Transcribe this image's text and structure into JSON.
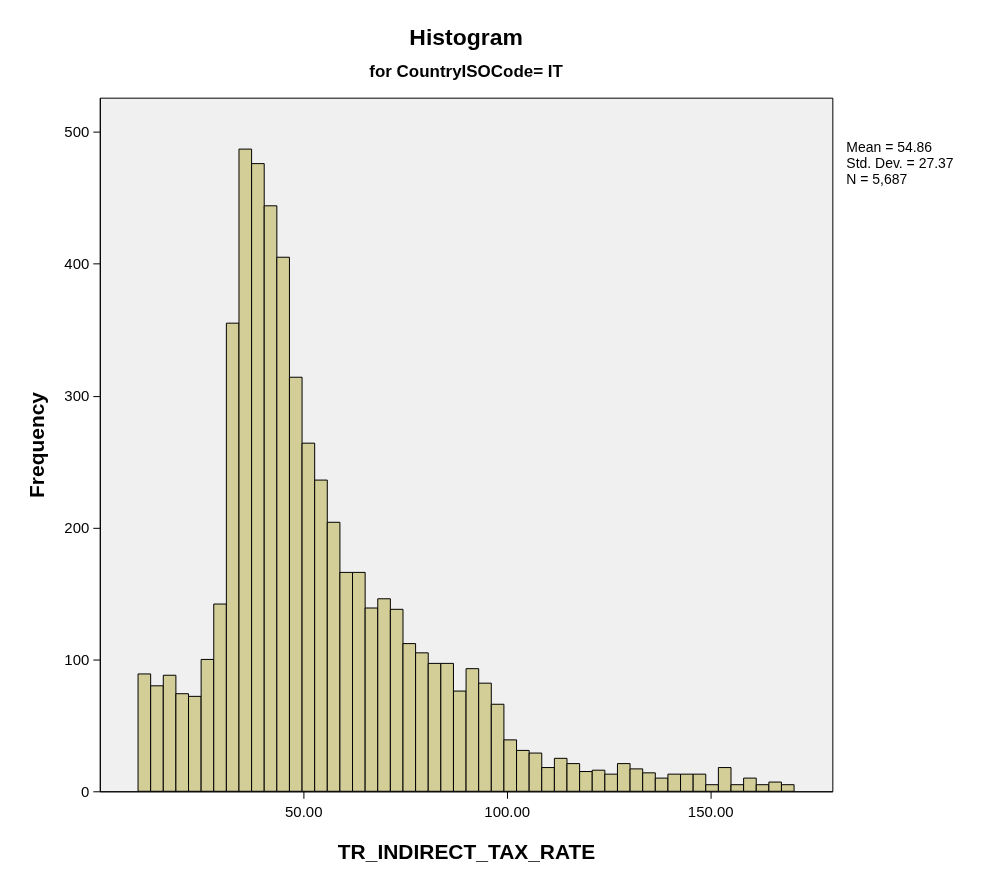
{
  "chart_data": {
    "type": "histogram",
    "title": "Histogram",
    "subtitle": "for CountryISOCode= IT",
    "xlabel": "TR_INDIRECT_TAX_RATE",
    "ylabel": "Frequency",
    "bins": [
      9.4,
      12.5,
      15.6,
      18.7,
      21.8,
      24.9,
      28.0,
      31.1,
      34.2,
      37.3,
      40.4,
      43.5,
      46.6,
      49.7,
      52.8,
      55.9,
      59.0,
      62.1,
      65.2,
      68.3,
      71.4,
      74.5,
      77.6,
      80.7,
      83.8,
      86.9,
      90.0,
      93.1,
      96.2,
      99.3,
      102.4,
      105.5,
      108.6,
      111.7,
      114.8,
      117.9,
      121.0,
      124.1,
      127.2,
      130.3,
      133.4,
      136.5,
      139.6,
      142.7,
      145.8,
      148.9,
      152.0,
      155.1,
      158.2,
      161.3,
      164.4,
      167.5,
      170.6
    ],
    "values": [
      89,
      80,
      88,
      74,
      72,
      100,
      142,
      355,
      487,
      476,
      444,
      405,
      314,
      264,
      236,
      204,
      166,
      166,
      139,
      146,
      138,
      112,
      105,
      97,
      97,
      76,
      93,
      82,
      66,
      39,
      31,
      29,
      18,
      25,
      21,
      15,
      16,
      13,
      21,
      17,
      14,
      10,
      13,
      13,
      13,
      5,
      18,
      5,
      10,
      5,
      7,
      5
    ],
    "color": "#d3ce97",
    "xlim": [
      0,
      180
    ],
    "xticks": [
      {
        "value": 50,
        "label": "50.00"
      },
      {
        "value": 100,
        "label": "100.00"
      },
      {
        "value": 150,
        "label": "150.00"
      }
    ],
    "ylim": [
      0,
      526
    ],
    "yticks": [
      0,
      100,
      200,
      300,
      400,
      500
    ],
    "grid": false,
    "annotations": [
      "Mean = 54.86",
      "Std. Dev. = 27.37",
      "N = 5,687"
    ]
  }
}
